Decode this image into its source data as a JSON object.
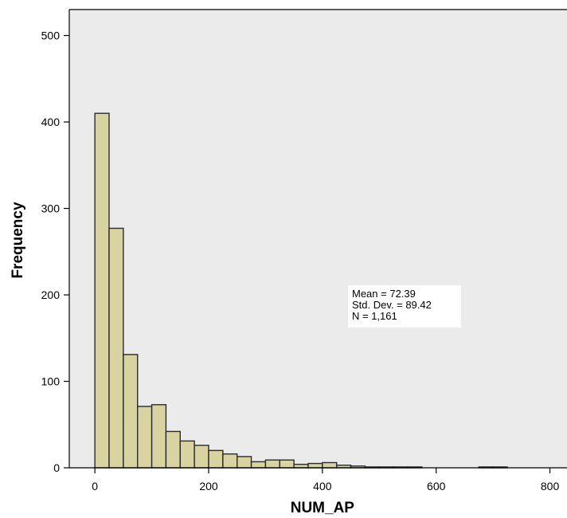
{
  "chart_data": {
    "type": "bar",
    "subtype": "histogram",
    "title": "",
    "xlabel": "NUM_AP",
    "ylabel": "Frequency",
    "xlim": [
      -45,
      830
    ],
    "ylim": [
      0,
      530
    ],
    "xticks": [
      0,
      200,
      400,
      600,
      800
    ],
    "yticks": [
      0,
      100,
      200,
      300,
      400,
      500
    ],
    "bin_width": 25,
    "bins": [
      {
        "start": 0,
        "end": 25,
        "value": 410
      },
      {
        "start": 25,
        "end": 50,
        "value": 277
      },
      {
        "start": 50,
        "end": 75,
        "value": 131
      },
      {
        "start": 75,
        "end": 100,
        "value": 71
      },
      {
        "start": 100,
        "end": 125,
        "value": 73
      },
      {
        "start": 125,
        "end": 150,
        "value": 42
      },
      {
        "start": 150,
        "end": 175,
        "value": 31
      },
      {
        "start": 175,
        "end": 200,
        "value": 26
      },
      {
        "start": 200,
        "end": 225,
        "value": 20
      },
      {
        "start": 225,
        "end": 250,
        "value": 16
      },
      {
        "start": 250,
        "end": 275,
        "value": 13
      },
      {
        "start": 275,
        "end": 300,
        "value": 7
      },
      {
        "start": 300,
        "end": 325,
        "value": 9
      },
      {
        "start": 325,
        "end": 350,
        "value": 9
      },
      {
        "start": 350,
        "end": 375,
        "value": 4
      },
      {
        "start": 375,
        "end": 400,
        "value": 5
      },
      {
        "start": 400,
        "end": 425,
        "value": 6
      },
      {
        "start": 425,
        "end": 450,
        "value": 3
      },
      {
        "start": 450,
        "end": 475,
        "value": 2
      },
      {
        "start": 475,
        "end": 500,
        "value": 1
      },
      {
        "start": 500,
        "end": 525,
        "value": 1
      },
      {
        "start": 525,
        "end": 550,
        "value": 1
      },
      {
        "start": 550,
        "end": 575,
        "value": 1
      },
      {
        "start": 675,
        "end": 700,
        "value": 1
      },
      {
        "start": 700,
        "end": 725,
        "value": 1
      }
    ],
    "stats": {
      "mean": "Mean = 72.39",
      "std_dev": "Std. Dev. = 89.42",
      "n": "N = 1,161"
    },
    "grid": false,
    "colors": {
      "plot_background": "#ebebeb",
      "bar_fill": "#d8d3a0",
      "bar_stroke": "#2b2b2b",
      "axis": "#000000"
    }
  }
}
